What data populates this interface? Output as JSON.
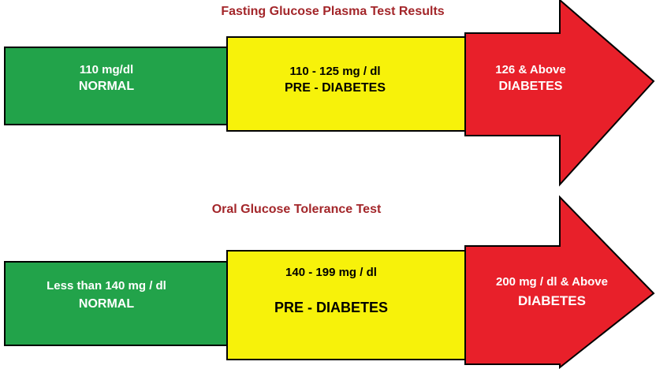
{
  "tests": [
    {
      "title": "Fasting Glucose Plasma Test Results",
      "segments": [
        {
          "value": "110 mg/dl",
          "category": "NORMAL",
          "color": "#22a34a"
        },
        {
          "value": "110 - 125 mg / dl",
          "category": "PRE - DIABETES",
          "color": "#f7f20a"
        },
        {
          "value": "126 & Above",
          "category": "DIABETES",
          "color": "#e8202a"
        }
      ]
    },
    {
      "title": "Oral Glucose Tolerance Test",
      "segments": [
        {
          "value": "Less than 140 mg / dl",
          "category": "NORMAL",
          "color": "#22a34a"
        },
        {
          "value": "140 - 199 mg / dl",
          "category": "PRE - DIABETES",
          "color": "#f7f20a"
        },
        {
          "value": "200 mg / dl & Above",
          "category": "DIABETES",
          "color": "#e8202a"
        }
      ]
    }
  ]
}
